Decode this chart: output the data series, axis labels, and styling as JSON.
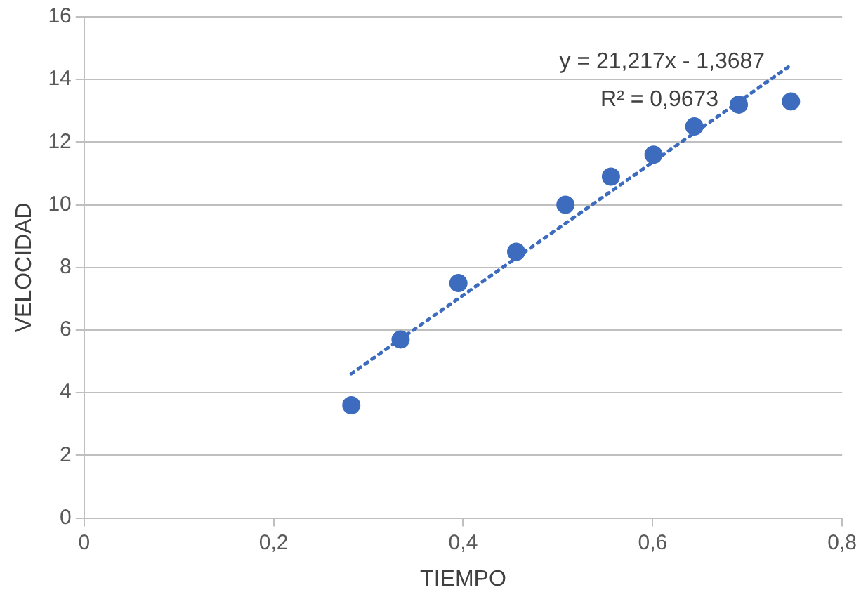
{
  "chart_data": {
    "type": "scatter",
    "xlabel": "TIEMPO",
    "ylabel": "VELOCIDAD",
    "xlim": [
      0,
      0.8
    ],
    "xticks": [
      0,
      {
        "value": 0.2,
        "label": "0,2"
      },
      {
        "value": 0.4,
        "label": "0,4"
      },
      {
        "value": 0.6,
        "label": "0,6"
      },
      {
        "value": 0.8,
        "label": "0,8"
      }
    ],
    "ylim": [
      0,
      16
    ],
    "yticks": [
      0,
      2,
      4,
      6,
      8,
      10,
      12,
      14,
      16
    ],
    "grid": "y",
    "legend": false,
    "annotations": [
      "y = 21,217x - 1,3687",
      "R² = 0,9673"
    ],
    "series": [
      {
        "type": "scatter",
        "color": "#3d6cbf",
        "marker": "circle",
        "x": [
          0.282,
          0.334,
          0.395,
          0.456,
          0.508,
          0.556,
          0.601,
          0.644,
          0.691,
          0.746
        ],
        "values": [
          3.6,
          5.7,
          7.5,
          8.5,
          10,
          10.9,
          11.6,
          12.5,
          13.2,
          13.3
        ]
      },
      {
        "type": "line",
        "color": "#3d6cbf",
        "marker": "none",
        "line_style": "dotted",
        "x": [
          0.282,
          0.746
        ],
        "values": [
          4.61,
          14.46
        ]
      }
    ]
  }
}
